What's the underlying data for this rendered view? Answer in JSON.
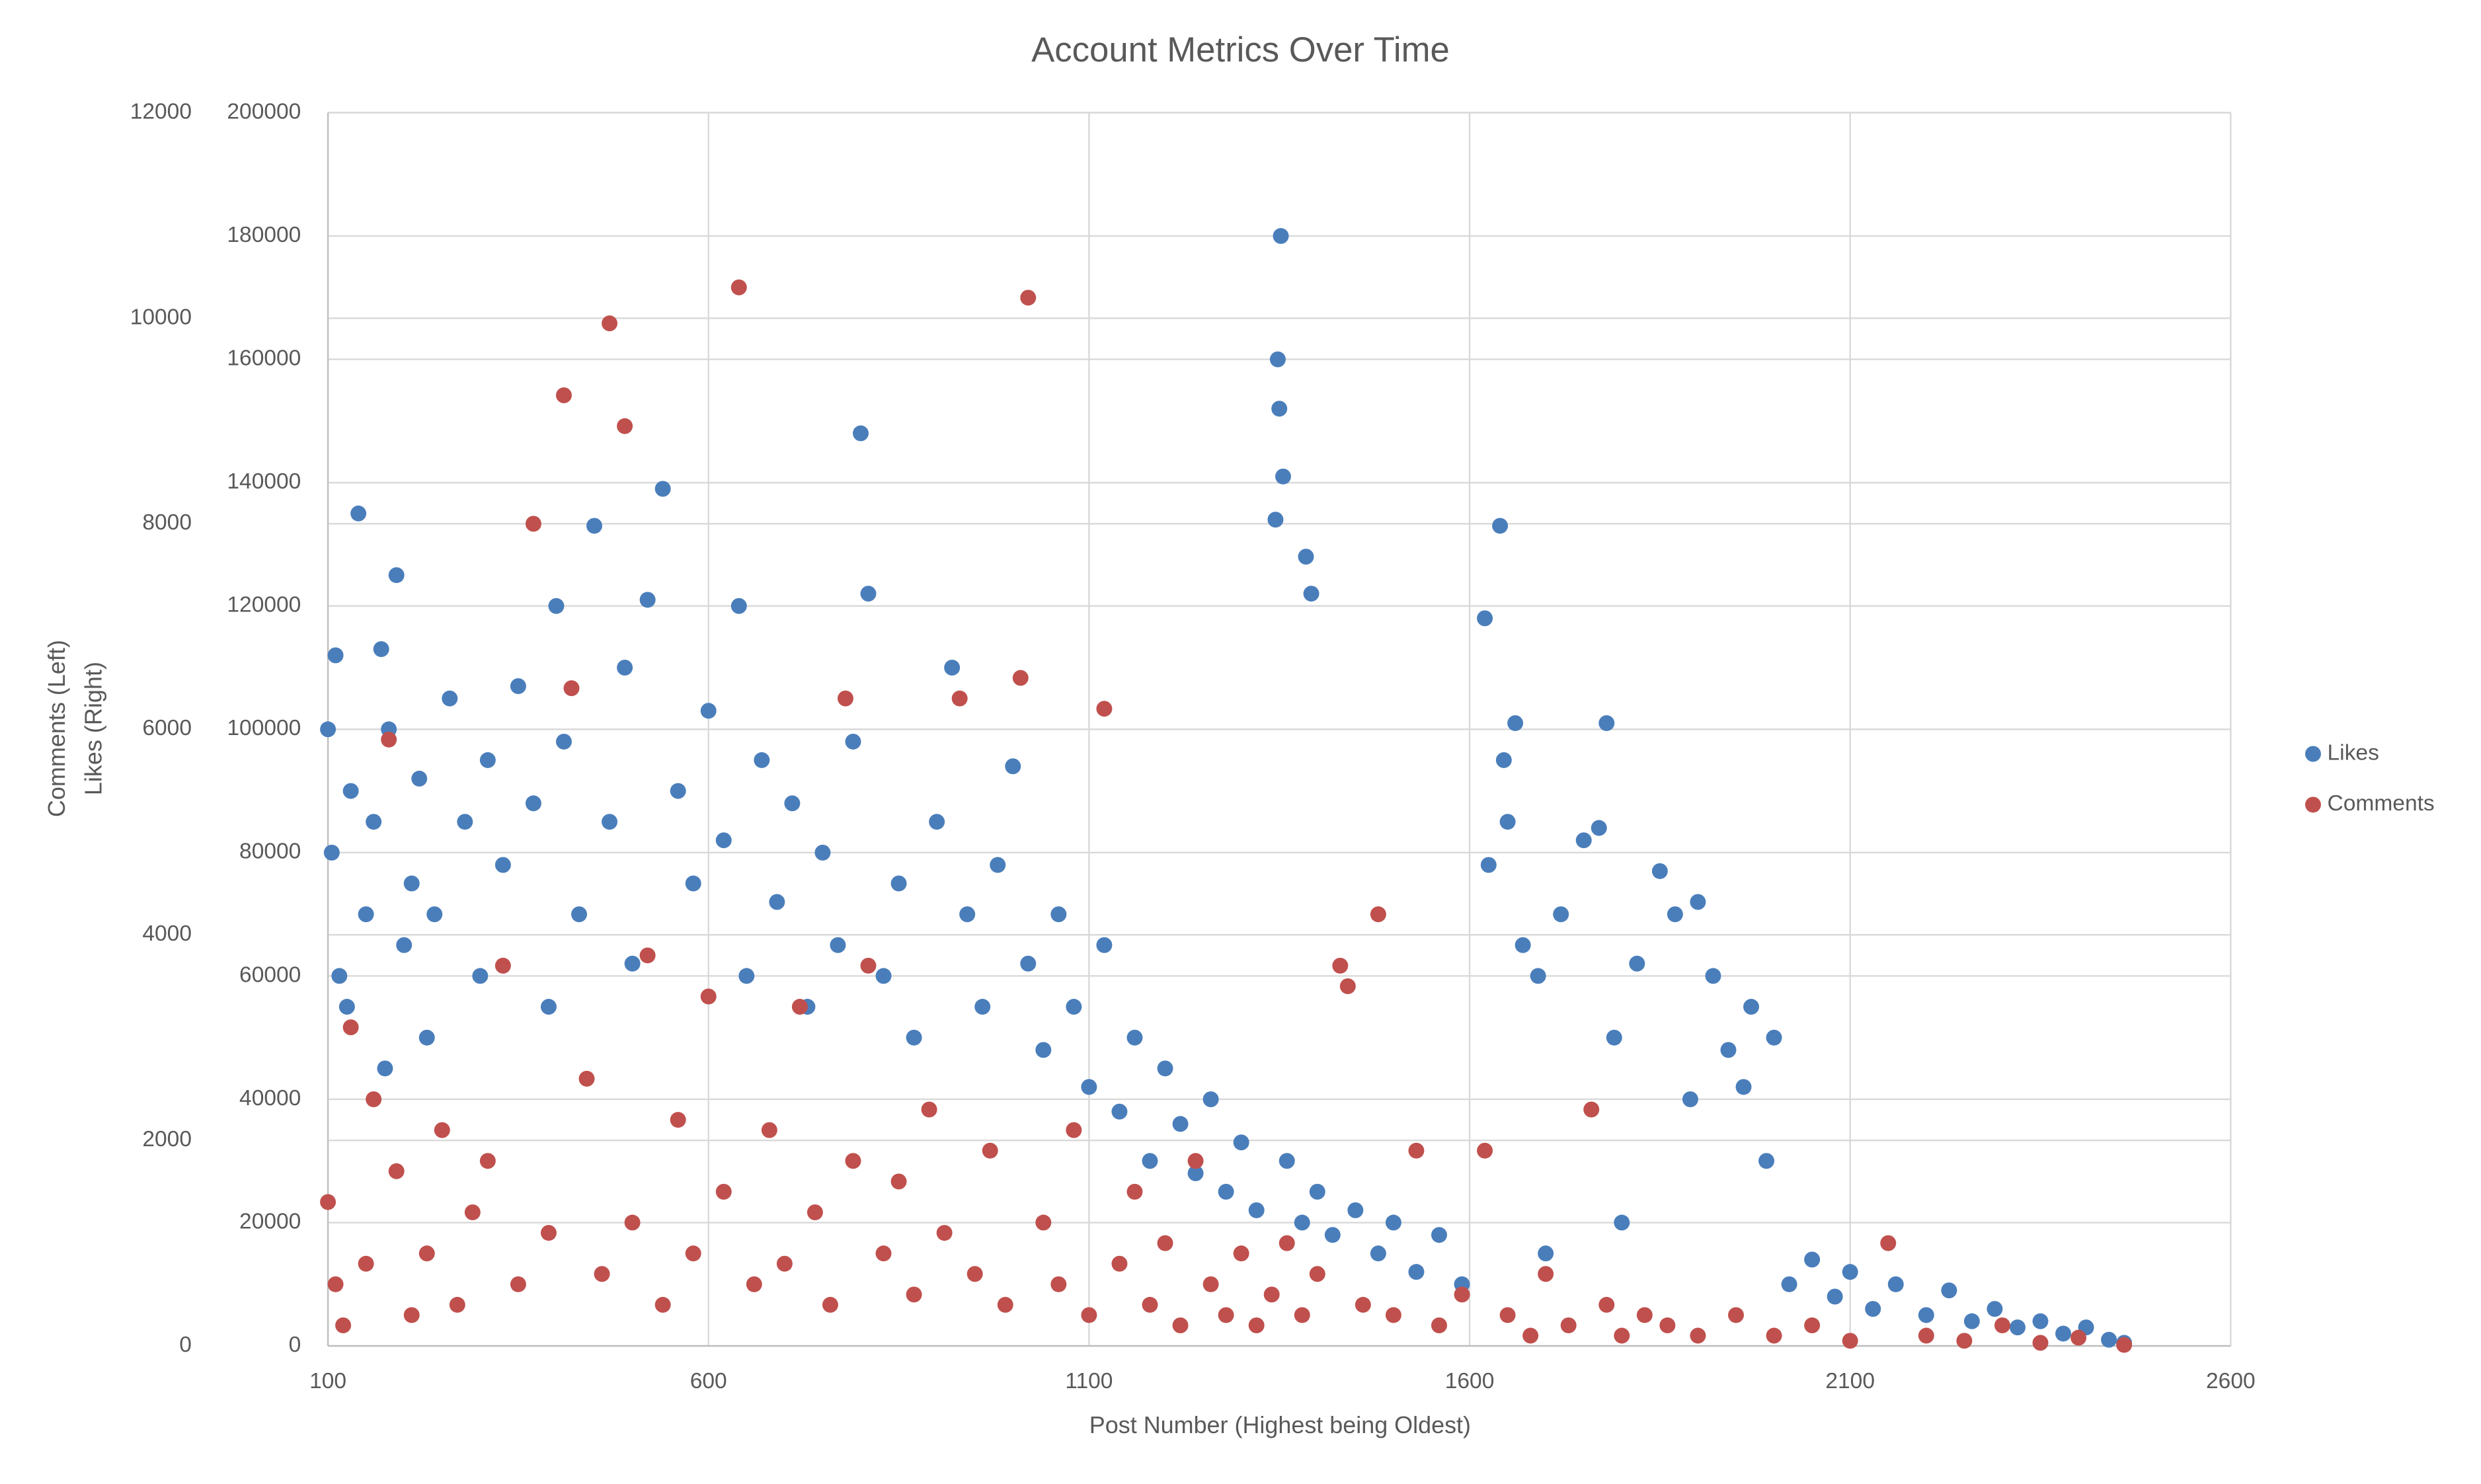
{
  "chart_data": {
    "type": "scatter",
    "title": "Account Metrics Over Time",
    "x_label": "Post Number (Highest being Oldest)",
    "y_label": "Comments (Left)",
    "y2_label": "Likes (Right)",
    "xlim": [
      100,
      2600
    ],
    "xticks": [
      100,
      600,
      1100,
      1600,
      2100,
      2600
    ],
    "ylim": [
      0,
      12000
    ],
    "yticks": [
      0,
      2000,
      4000,
      6000,
      8000,
      10000,
      12000
    ],
    "y2lim": [
      0,
      200000
    ],
    "y2ticks": [
      0,
      20000,
      40000,
      60000,
      80000,
      100000,
      120000,
      140000,
      160000,
      180000,
      200000
    ],
    "grid": true,
    "legend": "right",
    "series": [
      {
        "name": "Likes",
        "color": "#4a7ebb",
        "axis": "y2",
        "x": [
          100,
          105,
          110,
          115,
          125,
          130,
          140,
          150,
          160,
          170,
          175,
          180,
          190,
          200,
          210,
          220,
          230,
          240,
          260,
          280,
          300,
          310,
          330,
          350,
          370,
          390,
          400,
          410,
          430,
          450,
          470,
          490,
          500,
          520,
          540,
          560,
          580,
          600,
          620,
          640,
          650,
          670,
          690,
          710,
          730,
          750,
          770,
          790,
          800,
          810,
          830,
          850,
          870,
          900,
          920,
          940,
          960,
          980,
          1000,
          1020,
          1040,
          1060,
          1080,
          1100,
          1120,
          1140,
          1160,
          1180,
          1200,
          1220,
          1240,
          1260,
          1280,
          1300,
          1320,
          1345,
          1348,
          1350,
          1352,
          1355,
          1360,
          1380,
          1385,
          1392,
          1400,
          1420,
          1450,
          1480,
          1500,
          1530,
          1560,
          1590,
          1620,
          1625,
          1640,
          1645,
          1650,
          1660,
          1670,
          1690,
          1700,
          1720,
          1750,
          1770,
          1780,
          1790,
          1800,
          1820,
          1850,
          1870,
          1890,
          1900,
          1920,
          1940,
          1960,
          1970,
          1990,
          2000,
          2020,
          2050,
          2080,
          2100,
          2130,
          2160,
          2200,
          2230,
          2260,
          2290,
          2320,
          2350,
          2380,
          2410,
          2440,
          2460
        ],
        "values": [
          100000,
          80000,
          112000,
          60000,
          55000,
          90000,
          135000,
          70000,
          85000,
          113000,
          45000,
          100000,
          125000,
          65000,
          75000,
          92000,
          50000,
          70000,
          105000,
          85000,
          60000,
          95000,
          78000,
          107000,
          88000,
          55000,
          120000,
          98000,
          70000,
          133000,
          85000,
          110000,
          62000,
          121000,
          139000,
          90000,
          75000,
          103000,
          82000,
          120000,
          60000,
          95000,
          72000,
          88000,
          55000,
          80000,
          65000,
          98000,
          148000,
          122000,
          60000,
          75000,
          50000,
          85000,
          110000,
          70000,
          55000,
          78000,
          94000,
          62000,
          48000,
          70000,
          55000,
          42000,
          65000,
          38000,
          50000,
          30000,
          45000,
          36000,
          28000,
          40000,
          25000,
          33000,
          22000,
          134000,
          160000,
          152000,
          180000,
          141000,
          30000,
          20000,
          128000,
          122000,
          25000,
          18000,
          22000,
          15000,
          20000,
          12000,
          18000,
          10000,
          118000,
          78000,
          133000,
          95000,
          85000,
          101000,
          65000,
          60000,
          15000,
          70000,
          82000,
          84000,
          101000,
          50000,
          20000,
          62000,
          77000,
          70000,
          40000,
          72000,
          60000,
          48000,
          42000,
          55000,
          30000,
          50000,
          10000,
          14000,
          8000,
          12000,
          6000,
          10000,
          5000,
          9000,
          4000,
          6000,
          3000,
          4000,
          2000,
          3000,
          1000,
          500
        ]
      },
      {
        "name": "Comments",
        "color": "#c0504d",
        "x": [
          100,
          110,
          120,
          130,
          150,
          160,
          180,
          190,
          210,
          230,
          250,
          270,
          290,
          310,
          330,
          350,
          370,
          390,
          410,
          420,
          440,
          460,
          470,
          490,
          500,
          520,
          540,
          560,
          580,
          600,
          620,
          640,
          660,
          680,
          700,
          720,
          740,
          760,
          780,
          790,
          810,
          830,
          850,
          870,
          890,
          910,
          930,
          950,
          970,
          990,
          1010,
          1020,
          1040,
          1060,
          1080,
          1100,
          1120,
          1140,
          1160,
          1180,
          1200,
          1220,
          1240,
          1260,
          1280,
          1300,
          1320,
          1340,
          1360,
          1380,
          1400,
          1430,
          1440,
          1460,
          1480,
          1500,
          1530,
          1560,
          1590,
          1620,
          1650,
          1680,
          1700,
          1730,
          1760,
          1780,
          1800,
          1830,
          1860,
          1900,
          1950,
          2000,
          2050,
          2100,
          2150,
          2200,
          2250,
          2300,
          2350,
          2400,
          2460
        ],
        "values": [
          1400,
          600,
          200,
          3100,
          800,
          2400,
          5900,
          1700,
          300,
          900,
          2100,
          400,
          1300,
          1800,
          3700,
          600,
          8000,
          1100,
          9250,
          6400,
          2600,
          700,
          9950,
          8950,
          1200,
          3800,
          400,
          2200,
          900,
          3400,
          1500,
          10300,
          600,
          2100,
          800,
          3300,
          1300,
          400,
          6300,
          1800,
          3700,
          900,
          1600,
          500,
          2300,
          1100,
          6300,
          700,
          1900,
          400,
          6500,
          10200,
          1200,
          600,
          2100,
          300,
          6200,
          800,
          1500,
          400,
          1000,
          200,
          1800,
          600,
          300,
          900,
          200,
          500,
          1000,
          300,
          700,
          3700,
          3500,
          400,
          4200,
          300,
          1900,
          200,
          500,
          1900,
          300,
          100,
          700,
          200,
          2300,
          400,
          100,
          300,
          200,
          100,
          300,
          100,
          200,
          50,
          1000,
          100,
          50,
          200,
          30,
          80,
          10
        ]
      }
    ]
  }
}
